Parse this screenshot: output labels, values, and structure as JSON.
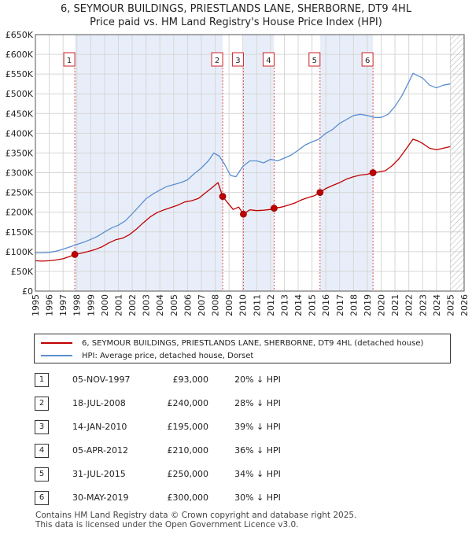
{
  "title_line1": "6, SEYMOUR BUILDINGS, PRIESTLANDS LANE, SHERBORNE, DT9 4HL",
  "title_line2": "Price paid vs. HM Land Registry's House Price Index (HPI)",
  "legend": {
    "property": "6, SEYMOUR BUILDINGS, PRIESTLANDS LANE, SHERBORNE, DT9 4HL (detached house)",
    "hpi": "HPI: Average price, detached house, Dorset"
  },
  "colors": {
    "property": "#c00000",
    "hpi": "#5b8fcf",
    "band": "#e8eef9",
    "marker_fill": "#c00000"
  },
  "transactions": [
    {
      "num": "1",
      "date": "05-NOV-1997",
      "price": "£93,000",
      "hpi": "20% ↓ HPI",
      "x": 1997.85,
      "y": 93000
    },
    {
      "num": "2",
      "date": "18-JUL-2008",
      "price": "£240,000",
      "hpi": "28% ↓ HPI",
      "x": 2008.54,
      "y": 240000
    },
    {
      "num": "3",
      "date": "14-JAN-2010",
      "price": "£195,000",
      "hpi": "39% ↓ HPI",
      "x": 2010.04,
      "y": 195000
    },
    {
      "num": "4",
      "date": "05-APR-2012",
      "price": "£210,000",
      "hpi": "36% ↓ HPI",
      "x": 2012.26,
      "y": 210000
    },
    {
      "num": "5",
      "date": "31-JUL-2015",
      "price": "£250,000",
      "hpi": "34% ↓ HPI",
      "x": 2015.58,
      "y": 250000
    },
    {
      "num": "6",
      "date": "30-MAY-2019",
      "price": "£300,000",
      "hpi": "30% ↓ HPI",
      "x": 2019.41,
      "y": 300000
    }
  ],
  "footer_line1": "Contains HM Land Registry data © Crown copyright and database right 2025.",
  "footer_line2": "This data is licensed under the Open Government Licence v3.0.",
  "chart_data": {
    "type": "line",
    "xlim": [
      1995,
      2026
    ],
    "ylim": [
      0,
      650000
    ],
    "y_ticks": [
      0,
      50000,
      100000,
      150000,
      200000,
      250000,
      300000,
      350000,
      400000,
      450000,
      500000,
      550000,
      600000,
      650000
    ],
    "y_tick_labels": [
      "£0",
      "£50K",
      "£100K",
      "£150K",
      "£200K",
      "£250K",
      "£300K",
      "£350K",
      "£400K",
      "£450K",
      "£500K",
      "£550K",
      "£600K",
      "£650K"
    ],
    "x_ticks": [
      1995,
      1996,
      1997,
      1998,
      1999,
      2000,
      2001,
      2002,
      2003,
      2004,
      2005,
      2006,
      2007,
      2008,
      2009,
      2010,
      2011,
      2012,
      2013,
      2014,
      2015,
      2016,
      2017,
      2018,
      2019,
      2020,
      2021,
      2022,
      2023,
      2024,
      2025,
      2026
    ],
    "shaded_bands": [
      [
        1997.85,
        2008.54
      ],
      [
        2010.04,
        2012.26
      ],
      [
        2015.58,
        2019.41
      ]
    ],
    "hatched_from": 2025.0,
    "grid": true,
    "series": [
      {
        "name": "HPI: Average price, detached house, Dorset",
        "x": [
          1995,
          1995.5,
          1996,
          1996.5,
          1997,
          1997.5,
          1998,
          1998.5,
          1999,
          1999.5,
          2000,
          2000.5,
          2001,
          2001.5,
          2002,
          2002.5,
          2003,
          2003.5,
          2004,
          2004.5,
          2005,
          2005.5,
          2006,
          2006.5,
          2007,
          2007.5,
          2007.9,
          2008.3,
          2008.7,
          2009.1,
          2009.5,
          2010,
          2010.5,
          2011,
          2011.5,
          2012,
          2012.5,
          2013,
          2013.5,
          2014,
          2014.5,
          2015,
          2015.5,
          2016,
          2016.5,
          2017,
          2017.5,
          2018,
          2018.5,
          2019,
          2019.5,
          2020,
          2020.5,
          2021,
          2021.5,
          2022,
          2022.3,
          2022.7,
          2023,
          2023.5,
          2024,
          2024.5,
          2025
        ],
        "y": [
          97000,
          97000,
          98000,
          101000,
          106000,
          112000,
          118000,
          124000,
          131000,
          139000,
          150000,
          160000,
          167000,
          178000,
          196000,
          215000,
          234000,
          246000,
          256000,
          265000,
          270000,
          275000,
          282000,
          298000,
          312000,
          330000,
          350000,
          342000,
          320000,
          293000,
          290000,
          316000,
          330000,
          330000,
          325000,
          334000,
          330000,
          337000,
          345000,
          357000,
          370000,
          378000,
          385000,
          400000,
          410000,
          425000,
          435000,
          445000,
          448000,
          445000,
          440000,
          440000,
          448000,
          468000,
          495000,
          530000,
          552000,
          545000,
          540000,
          522000,
          515000,
          522000,
          525000
        ]
      },
      {
        "name": "6, SEYMOUR BUILDINGS, PRIESTLANDS LANE, SHERBORNE, DT9 4HL (detached house)",
        "x": [
          1995,
          1995.5,
          1996,
          1996.5,
          1997,
          1997.5,
          1997.85,
          1998.3,
          1998.8,
          1999.3,
          1999.8,
          2000.3,
          2000.8,
          2001.3,
          2001.8,
          2002.3,
          2002.8,
          2003.3,
          2003.8,
          2004.3,
          2004.8,
          2005.3,
          2005.8,
          2006.3,
          2006.8,
          2007.3,
          2007.8,
          2008.2,
          2008.54,
          2008.9,
          2009.3,
          2009.7,
          2010.04,
          2010.5,
          2011,
          2011.5,
          2012,
          2012.26,
          2012.8,
          2013.3,
          2013.8,
          2014.3,
          2014.8,
          2015.2,
          2015.58,
          2016,
          2016.5,
          2017,
          2017.5,
          2018,
          2018.5,
          2019,
          2019.41,
          2019.8,
          2020.3,
          2020.8,
          2021.3,
          2021.8,
          2022.3,
          2022.7,
          2023,
          2023.5,
          2024,
          2024.5,
          2025
        ],
        "y": [
          77000,
          76000,
          77000,
          79000,
          82000,
          88000,
          93000,
          96000,
          100000,
          105000,
          112000,
          122000,
          130000,
          134000,
          143000,
          157000,
          173000,
          188000,
          199000,
          206000,
          212000,
          218000,
          226000,
          229000,
          235000,
          249000,
          263000,
          275000,
          240000,
          224000,
          207000,
          213000,
          195000,
          206000,
          204000,
          205000,
          207000,
          210000,
          213000,
          218000,
          224000,
          232000,
          238000,
          242000,
          250000,
          260000,
          268000,
          275000,
          284000,
          290000,
          294000,
          296000,
          300000,
          302000,
          305000,
          318000,
          336000,
          360000,
          385000,
          380000,
          374000,
          362000,
          358000,
          362000,
          366000
        ]
      }
    ]
  }
}
